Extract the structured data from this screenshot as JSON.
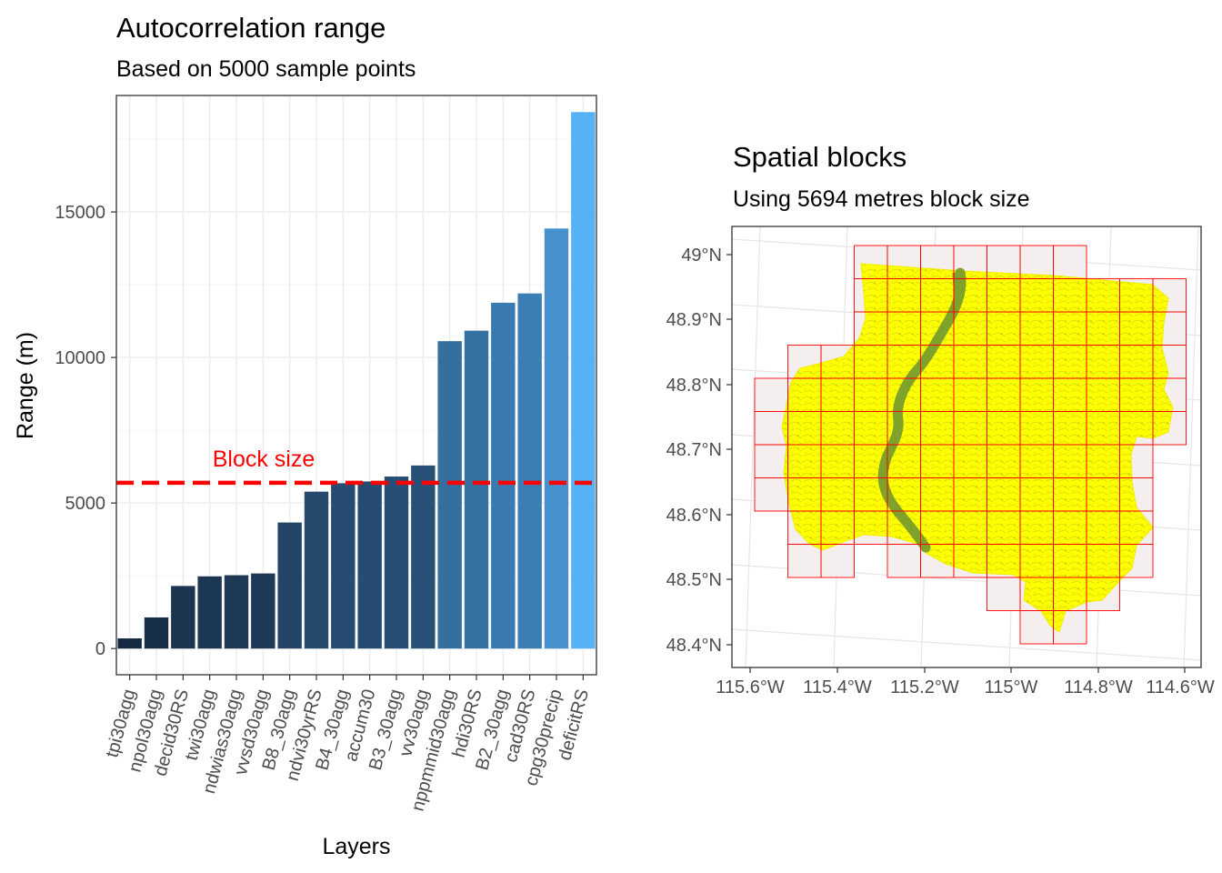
{
  "chart_data": [
    {
      "type": "bar",
      "title": "Autocorrelation range",
      "subtitle": "Based on 5000 sample points",
      "xlabel": "Layers",
      "ylabel": "Range (m)",
      "ylim": [
        -900,
        19000
      ],
      "yticks": [
        0,
        5000,
        10000,
        15000
      ],
      "grid": true,
      "categories": [
        "tpi30agg",
        "npol30agg",
        "decid30RS",
        "twi30agg",
        "ndwias30agg",
        "vvsd30agg",
        "B8_30agg",
        "ndvi30yrRS",
        "B4_30agg",
        "accum30",
        "B3_30agg",
        "vv30agg",
        "nppmmid30agg",
        "hdi30RS",
        "B2_30agg",
        "cad30RS",
        "cpg30precip",
        "deficitRS"
      ],
      "values": [
        350,
        1070,
        2150,
        2480,
        2520,
        2580,
        4330,
        5390,
        5680,
        5740,
        5910,
        6290,
        10560,
        10920,
        11880,
        12200,
        14430,
        18430
      ],
      "bar_colors": [
        "#142a40",
        "#172f47",
        "#1b3550",
        "#1c3754",
        "#1d3956",
        "#1e3a58",
        "#224466",
        "#254a6e",
        "#264c71",
        "#264c71",
        "#274e74",
        "#285178",
        "#336f9f",
        "#3572a3",
        "#397bb0",
        "#3b7eb4",
        "#4690cb",
        "#56b1f7"
      ],
      "reference_line": {
        "value": 5694,
        "label": "Block size",
        "color": "#ff0000",
        "style": "dashed"
      }
    },
    {
      "type": "map",
      "title": "Spatial blocks",
      "subtitle": "Using 5694 metres block size",
      "lat_ticks": [
        "48.4°N",
        "48.5°N",
        "48.6°N",
        "48.7°N",
        "48.8°N",
        "48.9°N",
        "49°N"
      ],
      "lon_ticks": [
        "115.6°W",
        "115.4°W",
        "115.2°W",
        "115°W",
        "114.8°W",
        "114.6°W"
      ],
      "grid": true,
      "block_color": "#ff0000",
      "block_fill": "#f5eeee",
      "raster_color": "#ffff00",
      "river_color": "#7fa32a"
    }
  ]
}
